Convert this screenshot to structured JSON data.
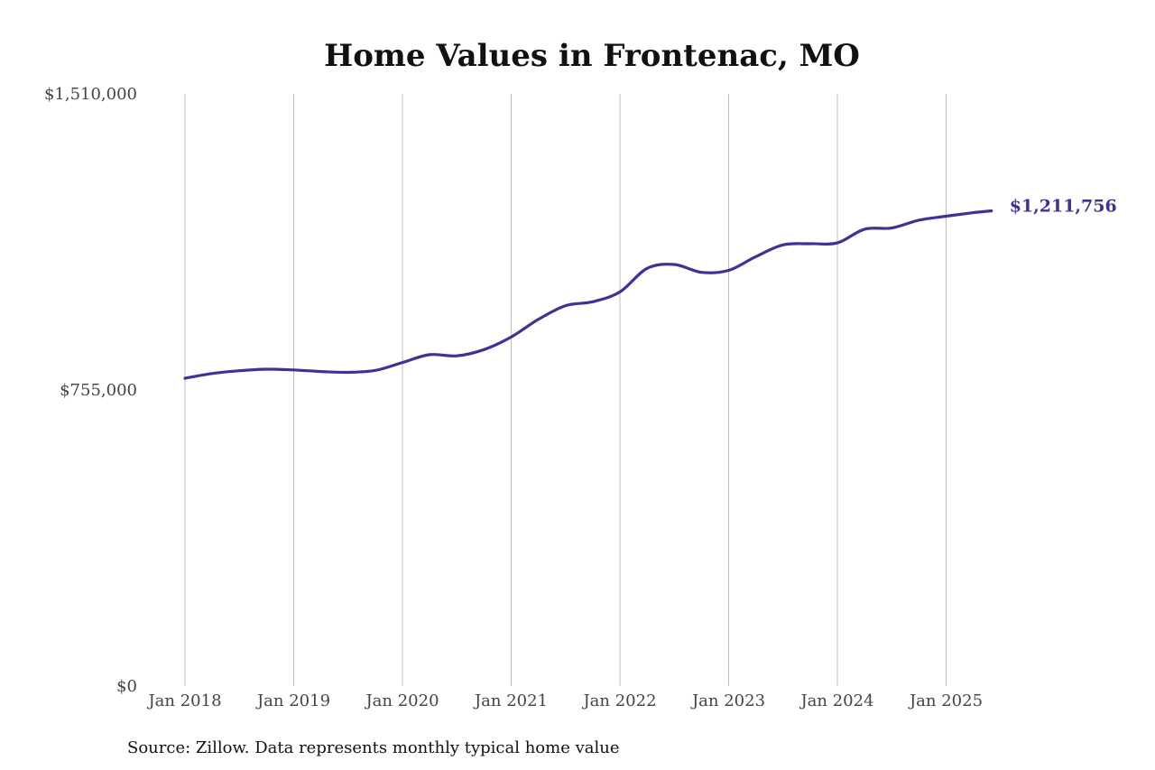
{
  "chart_data": {
    "type": "line",
    "title": "Home Values in Frontenac, MO",
    "xlabel": "",
    "ylabel": "",
    "ylim": [
      0,
      1510000
    ],
    "yticks": [
      {
        "value": 0,
        "label": "$0"
      },
      {
        "value": 755000,
        "label": "$755,000"
      },
      {
        "value": 1510000,
        "label": "$1,510,000"
      }
    ],
    "xlim": [
      "2018-01",
      "2025-06"
    ],
    "xticks": [
      {
        "value": "2018-01",
        "label": "Jan 2018"
      },
      {
        "value": "2019-01",
        "label": "Jan 2019"
      },
      {
        "value": "2020-01",
        "label": "Jan 2020"
      },
      {
        "value": "2021-01",
        "label": "Jan 2021"
      },
      {
        "value": "2022-01",
        "label": "Jan 2022"
      },
      {
        "value": "2023-01",
        "label": "Jan 2023"
      },
      {
        "value": "2024-01",
        "label": "Jan 2024"
      },
      {
        "value": "2025-01",
        "label": "Jan 2025"
      }
    ],
    "grid": {
      "vertical": true,
      "horizontal": false
    },
    "legend": "none",
    "series": [
      {
        "color": "#3b3496",
        "points": [
          {
            "x": "2018-01",
            "y": 785000
          },
          {
            "x": "2018-04",
            "y": 797000
          },
          {
            "x": "2018-07",
            "y": 804000
          },
          {
            "x": "2018-10",
            "y": 808000
          },
          {
            "x": "2019-01",
            "y": 806000
          },
          {
            "x": "2019-04",
            "y": 802000
          },
          {
            "x": "2019-07",
            "y": 800000
          },
          {
            "x": "2019-10",
            "y": 805000
          },
          {
            "x": "2020-01",
            "y": 825000
          },
          {
            "x": "2020-04",
            "y": 845000
          },
          {
            "x": "2020-07",
            "y": 842000
          },
          {
            "x": "2020-10",
            "y": 858000
          },
          {
            "x": "2021-01",
            "y": 890000
          },
          {
            "x": "2021-04",
            "y": 935000
          },
          {
            "x": "2021-07",
            "y": 970000
          },
          {
            "x": "2021-10",
            "y": 980000
          },
          {
            "x": "2022-01",
            "y": 1005000
          },
          {
            "x": "2022-04",
            "y": 1065000
          },
          {
            "x": "2022-07",
            "y": 1075000
          },
          {
            "x": "2022-10",
            "y": 1055000
          },
          {
            "x": "2023-01",
            "y": 1060000
          },
          {
            "x": "2023-04",
            "y": 1095000
          },
          {
            "x": "2023-07",
            "y": 1125000
          },
          {
            "x": "2023-10",
            "y": 1128000
          },
          {
            "x": "2024-01",
            "y": 1130000
          },
          {
            "x": "2024-04",
            "y": 1165000
          },
          {
            "x": "2024-07",
            "y": 1168000
          },
          {
            "x": "2024-10",
            "y": 1188000
          },
          {
            "x": "2025-01",
            "y": 1198000
          },
          {
            "x": "2025-04",
            "y": 1207000
          },
          {
            "x": "2025-06",
            "y": 1211756
          }
        ]
      }
    ],
    "annotations": [
      {
        "x": "2025-06",
        "y": 1211756,
        "text": "$1,211,756"
      }
    ]
  },
  "footer": {
    "source": "Source: Zillow. Data represents monthly typical home value"
  }
}
